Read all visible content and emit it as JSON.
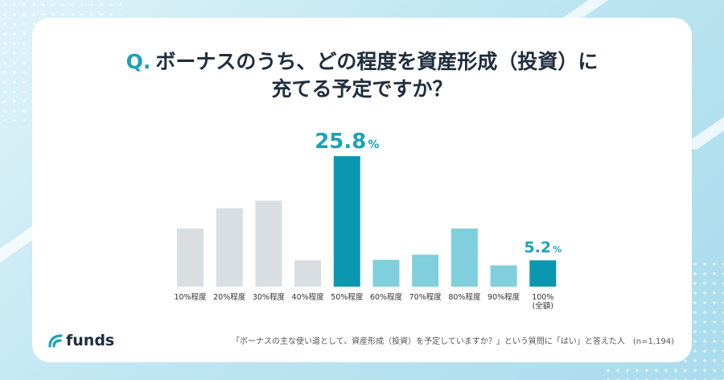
{
  "header": {
    "q_mark": "Q.",
    "title_line1": "ボーナスのうち、どの程度を資産形成（投資）に",
    "title_line2": "充てる予定ですか？"
  },
  "brand": {
    "name": "funds",
    "color": "#1aa3b8"
  },
  "footnote": "「ボーナスの主な使い道として、資産形成（投資）を予定していますか？」という質問に「はい」と答えた人　(n=1,194)",
  "colors": {
    "gray": "#d9dee2",
    "light_teal": "#7fcfdc",
    "teal": "#1aa3b8",
    "dark_teal": "#0b97b0"
  },
  "chart_data": {
    "type": "bar",
    "categories": [
      "10%程度",
      "20%程度",
      "30%程度",
      "40%程度",
      "50%程度",
      "60%程度",
      "70%程度",
      "80%程度",
      "90%程度",
      "100%\n(全額)"
    ],
    "values": [
      11.5,
      15.5,
      17.0,
      5.2,
      25.8,
      5.3,
      6.3,
      11.5,
      4.2,
      5.2
    ],
    "bar_colors": [
      "gray",
      "gray",
      "gray",
      "gray",
      "dark_teal",
      "light_teal",
      "light_teal",
      "light_teal",
      "light_teal",
      "dark_teal"
    ],
    "data_labels": [
      {
        "index": 4,
        "number": "25.8",
        "unit": "%"
      },
      {
        "index": 9,
        "number": "5.2",
        "unit": "%"
      }
    ],
    "ylim": [
      0,
      25.8
    ]
  }
}
